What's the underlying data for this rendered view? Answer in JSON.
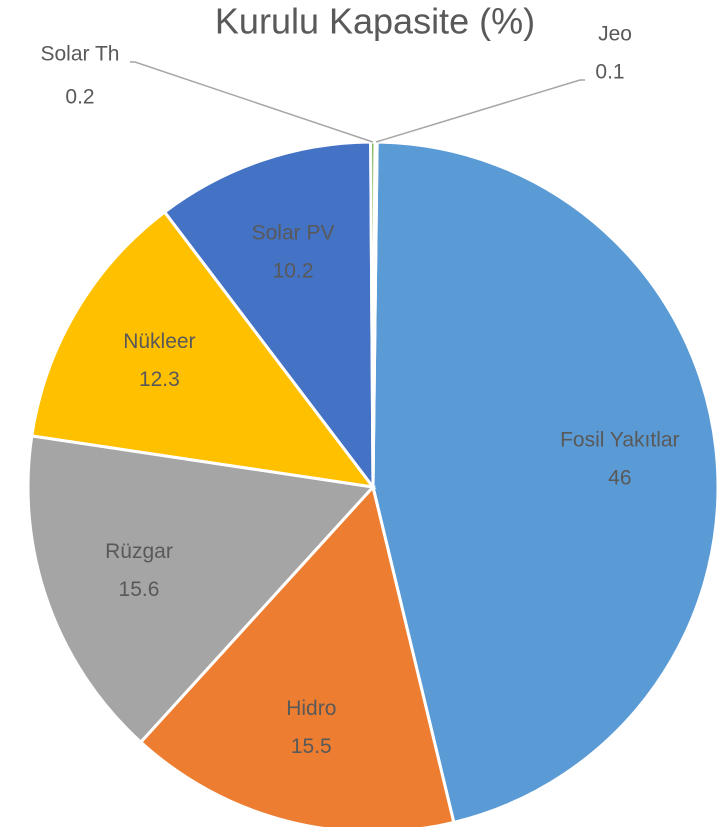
{
  "chart_data": {
    "type": "pie",
    "title": "Kurulu Kapasite (%)",
    "categories": [
      "Fosil Yakıtlar",
      "Hidro",
      "Rüzgar",
      "Nükleer",
      "Solar PV",
      "Solar Th",
      "Jeo"
    ],
    "values": [
      46,
      15.5,
      15.6,
      12.3,
      10.2,
      0.2,
      0.1
    ],
    "colors": [
      "#5b9bd5",
      "#ed7d31",
      "#a5a5a5",
      "#ffc000",
      "#4472c4",
      "#70ad47",
      "#264478"
    ]
  }
}
